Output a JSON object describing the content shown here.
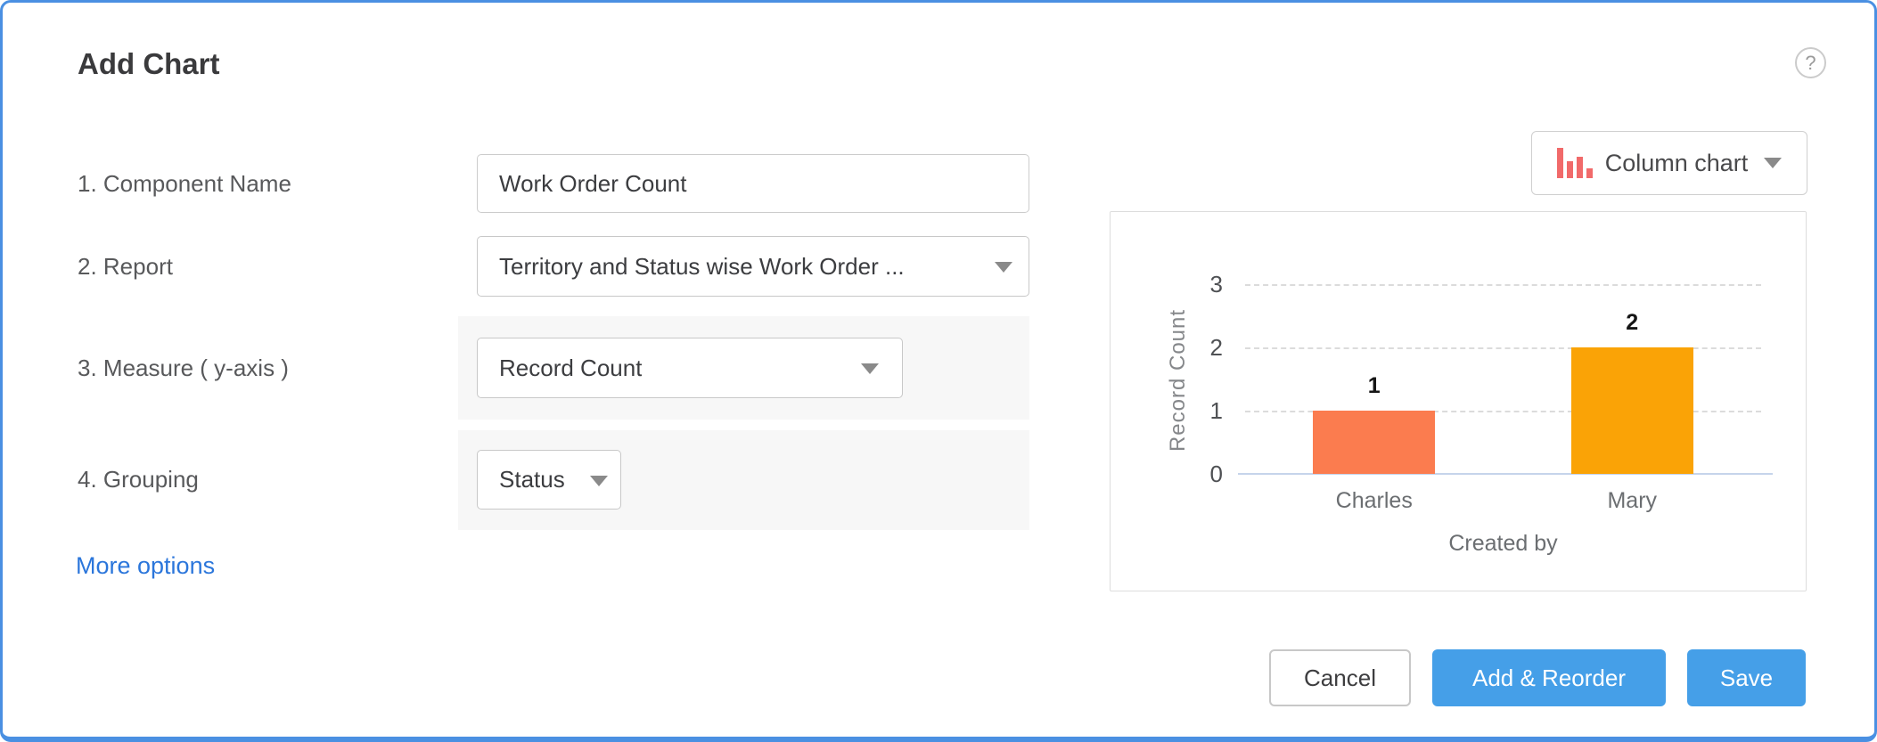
{
  "dialog": {
    "title": "Add Chart",
    "help_icon": "?"
  },
  "form": {
    "rows": [
      {
        "label": "1. Component Name",
        "type": "text-input",
        "value": "Work Order Count"
      },
      {
        "label": "2. Report",
        "type": "select",
        "value": "Territory and Status wise Work Order ..."
      },
      {
        "label": "3. Measure ( y-axis )",
        "type": "select",
        "value": "Record Count"
      },
      {
        "label": "4. Grouping",
        "type": "select",
        "value": "Status"
      }
    ],
    "more_options_label": "More options"
  },
  "chart_type_selector": {
    "label": "Column chart",
    "icon": "column-chart-icon",
    "icon_color": "#F16A6A"
  },
  "chart_data": {
    "type": "bar",
    "title": "",
    "categories": [
      "Charles",
      "Mary"
    ],
    "values": [
      1,
      2
    ],
    "value_labels": [
      "1",
      "2"
    ],
    "bar_colors": [
      "#FB7C4F",
      "#FAA306"
    ],
    "xlabel": "Created by",
    "ylabel": "Record Count",
    "yticks": [
      0,
      1,
      2,
      3
    ],
    "ylim": [
      0,
      3.5
    ],
    "grid": "dashed-horizontal",
    "legend": "none"
  },
  "footer": {
    "cancel_label": "Cancel",
    "add_reorder_label": "Add & Reorder",
    "save_label": "Save"
  },
  "colors": {
    "dialog_border": "#4A90E2",
    "primary_button": "#459FE8",
    "link_blue": "#2B76DB",
    "panel_gray": "#F7F7F7",
    "axis_baseline": "#C6D4EB"
  }
}
